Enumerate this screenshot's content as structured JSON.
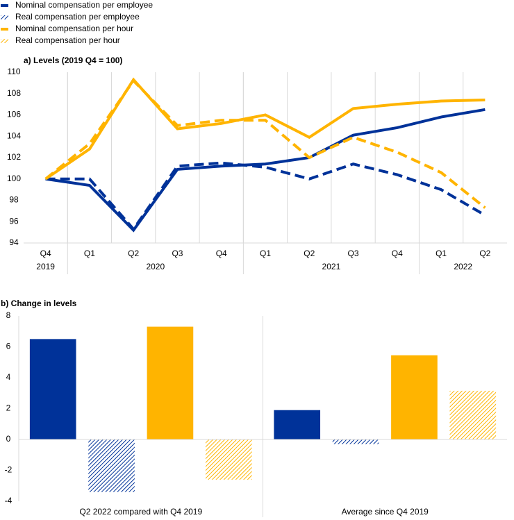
{
  "chart_data": [
    {
      "type": "line",
      "title": "a) Levels (2019 Q4 = 100)",
      "legend": "top-left",
      "categories": [
        "Q4",
        "Q1",
        "Q2",
        "Q3",
        "Q4",
        "Q1",
        "Q2",
        "Q3",
        "Q4",
        "Q1",
        "Q2"
      ],
      "years": [
        "2019",
        "2020",
        null,
        null,
        null,
        "2021",
        null,
        null,
        null,
        "2022",
        null
      ],
      "ylim": [
        94,
        110
      ],
      "yticks": [
        94,
        96,
        98,
        100,
        102,
        104,
        106,
        108,
        110
      ],
      "grid": "vertical",
      "series": [
        {
          "name": "Nominal compensation per employee",
          "color": "#003299",
          "style": "solid",
          "values": [
            100,
            99.4,
            95.2,
            100.9,
            101.2,
            101.4,
            102.0,
            104.1,
            104.8,
            105.8,
            106.5
          ]
        },
        {
          "name": "Real compensation per employee",
          "color": "#003299",
          "style": "dashed",
          "values": [
            100,
            100,
            95.3,
            101.2,
            101.5,
            101.1,
            100.0,
            101.4,
            100.4,
            99.0,
            96.6
          ]
        },
        {
          "name": "Nominal compensation per hour",
          "color": "#ffb400",
          "style": "solid",
          "values": [
            100,
            102.8,
            109.3,
            104.7,
            105.2,
            106.0,
            103.9,
            106.6,
            107.0,
            107.3,
            107.4
          ]
        },
        {
          "name": "Real compensation per hour",
          "color": "#ffb400",
          "style": "dashed",
          "values": [
            100,
            103.3,
            109.2,
            105.0,
            105.5,
            105.5,
            102.0,
            103.9,
            102.5,
            100.6,
            97.3
          ]
        }
      ]
    },
    {
      "type": "bar",
      "title": "b) Change in levels",
      "categories": [
        "Q2 2022 compared with Q4 2019",
        "Average since Q4 2019"
      ],
      "ylim": [
        -4,
        8
      ],
      "yticks": [
        -4,
        -2,
        0,
        2,
        4,
        6,
        8
      ],
      "series": [
        {
          "color": "#003299",
          "hatched": false,
          "values": [
            6.5,
            1.9
          ]
        },
        {
          "color": "#003299",
          "hatched": true,
          "values": [
            -3.4,
            -0.3
          ]
        },
        {
          "color": "#ffb400",
          "hatched": false,
          "values": [
            7.3,
            5.45
          ]
        },
        {
          "color": "#ffb400",
          "hatched": true,
          "values": [
            -2.6,
            3.15
          ]
        }
      ]
    }
  ]
}
